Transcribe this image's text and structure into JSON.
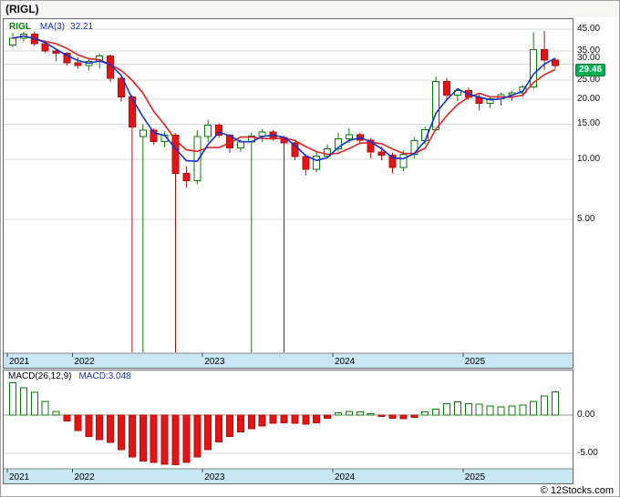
{
  "title": "(RIGL)",
  "legend": {
    "symbol": "RIGL",
    "ma_label": "MA(3)",
    "ma_value": "32.21"
  },
  "price_badge": "29.46",
  "macd_header": {
    "label": "MACD(26,12,9)",
    "value": "MACD:3.048"
  },
  "copyright": "© 12Stocks.com",
  "colors": {
    "up": "#0a7a0a",
    "up_fill": "#ffffff",
    "down": "#e41414",
    "down_stroke": "#b01010",
    "ma_fast": "#1133cc",
    "ma_slow": "#dd2222",
    "band": "#c9e6f5",
    "grid": "#d9d9d9",
    "zero_line": "#999999",
    "badge_bg": "#00b050"
  },
  "chart_data": {
    "type": "candlestick",
    "symbol": "RIGL",
    "interval": "monthly",
    "last_close": 29.46,
    "panels": [
      {
        "name": "price",
        "type": "candlestick",
        "y_axis": {
          "scale": "log",
          "ticks": [
            45,
            35,
            30,
            25,
            20,
            15,
            10,
            5
          ]
        },
        "x_ticks": [
          {
            "label": "2021",
            "index": 0
          },
          {
            "label": "2022",
            "index": 6
          },
          {
            "label": "2023",
            "index": 18
          },
          {
            "label": "2024",
            "index": 30
          },
          {
            "label": "2025",
            "index": 42
          }
        ],
        "candle_format": [
          "open",
          "high",
          "low",
          "close"
        ],
        "months": [
          "2021-07",
          "2021-08",
          "2021-09",
          "2021-10",
          "2021-11",
          "2021-12",
          "2022-01",
          "2022-02",
          "2022-03",
          "2022-04",
          "2022-05",
          "2022-06",
          "2022-07",
          "2022-08",
          "2022-09",
          "2022-10",
          "2022-11",
          "2022-12",
          "2023-01",
          "2023-02",
          "2023-03",
          "2023-04",
          "2023-05",
          "2023-06",
          "2023-07",
          "2023-08",
          "2023-09",
          "2023-10",
          "2023-11",
          "2023-12",
          "2024-01",
          "2024-02",
          "2024-03",
          "2024-04",
          "2024-05",
          "2024-06",
          "2024-07",
          "2024-08",
          "2024-09",
          "2024-10",
          "2024-11",
          "2024-12",
          "2025-01",
          "2025-02",
          "2025-03",
          "2025-04",
          "2025-05",
          "2025-06",
          "2025-07",
          "2025-08",
          "2025-09"
        ],
        "candles": [
          [
            37.5,
            43.0,
            36.5,
            40.5
          ],
          [
            40.5,
            43.5,
            39.0,
            42.5
          ],
          [
            42.5,
            43.8,
            37.0,
            38.0
          ],
          [
            38.0,
            39.5,
            34.0,
            35.0
          ],
          [
            35.0,
            35.5,
            31.0,
            34.0
          ],
          [
            34.0,
            34.5,
            29.5,
            30.5
          ],
          [
            30.5,
            32.5,
            28.5,
            29.5
          ],
          [
            29.5,
            32.0,
            28.0,
            31.0
          ],
          [
            31.0,
            34.0,
            28.5,
            33.0
          ],
          [
            33.0,
            33.5,
            24.5,
            25.5
          ],
          [
            25.5,
            26.5,
            19.5,
            20.5
          ],
          [
            20.5,
            21.0,
            1.0,
            14.5
          ],
          [
            13.0,
            15.0,
            1.0,
            14.0
          ],
          [
            14.0,
            14.3,
            11.8,
            12.3
          ],
          [
            12.3,
            13.8,
            11.5,
            13.2
          ],
          [
            13.2,
            13.5,
            1.0,
            8.5
          ],
          [
            8.5,
            9.2,
            7.2,
            7.8
          ],
          [
            7.8,
            14.0,
            7.5,
            13.0
          ],
          [
            13.0,
            15.8,
            12.2,
            14.8
          ],
          [
            14.8,
            15.2,
            12.8,
            13.2
          ],
          [
            13.2,
            13.4,
            10.8,
            11.4
          ],
          [
            11.4,
            12.6,
            10.9,
            12.2
          ],
          [
            12.2,
            13.6,
            1.0,
            13.1
          ],
          [
            13.1,
            14.2,
            12.2,
            13.7
          ],
          [
            13.7,
            14.0,
            12.4,
            12.9
          ],
          [
            12.9,
            13.1,
            1.0,
            12.1
          ],
          [
            12.1,
            12.4,
            9.9,
            10.3
          ],
          [
            10.3,
            10.6,
            8.3,
            8.9
          ],
          [
            8.9,
            10.9,
            8.6,
            10.4
          ],
          [
            10.4,
            11.9,
            10.1,
            11.3
          ],
          [
            11.3,
            13.6,
            10.9,
            12.7
          ],
          [
            12.7,
            14.3,
            12.1,
            13.3
          ],
          [
            13.3,
            13.6,
            11.9,
            12.5
          ],
          [
            12.5,
            12.8,
            10.1,
            10.9
          ],
          [
            10.9,
            11.6,
            9.9,
            10.5
          ],
          [
            10.5,
            10.8,
            8.5,
            9.1
          ],
          [
            9.1,
            11.1,
            8.7,
            10.6
          ],
          [
            10.6,
            12.9,
            10.1,
            12.4
          ],
          [
            12.4,
            14.6,
            11.9,
            14.1
          ],
          [
            14.1,
            26.0,
            13.9,
            24.6
          ],
          [
            24.6,
            25.6,
            19.9,
            21.0
          ],
          [
            21.0,
            22.6,
            19.6,
            22.1
          ],
          [
            22.1,
            22.9,
            19.9,
            20.4
          ],
          [
            20.4,
            21.1,
            17.6,
            19.1
          ],
          [
            19.1,
            20.6,
            18.1,
            20.1
          ],
          [
            20.1,
            21.6,
            18.6,
            21.1
          ],
          [
            21.1,
            22.1,
            19.6,
            21.6
          ],
          [
            21.6,
            23.6,
            20.6,
            23.1
          ],
          [
            23.1,
            43.5,
            22.6,
            35.5
          ],
          [
            35.5,
            44.0,
            28.0,
            31.5
          ],
          [
            31.5,
            32.0,
            28.5,
            29.46
          ]
        ],
        "overlays": [
          {
            "name": "MA(3)",
            "period": 3,
            "color": "#1133cc",
            "last_value": 32.21
          },
          {
            "name": "MA(5)",
            "period": 5,
            "color": "#dd2222"
          }
        ]
      },
      {
        "name": "macd",
        "type": "bar",
        "title": "MACD(26,12,9)",
        "last_value": 3.048,
        "y_ticks": [
          0,
          -5
        ],
        "values": [
          4.2,
          3.6,
          3.0,
          1.8,
          0.5,
          -0.8,
          -2.0,
          -2.8,
          -3.2,
          -3.6,
          -4.5,
          -5.5,
          -6.0,
          -6.2,
          -6.4,
          -6.5,
          -6.2,
          -5.5,
          -4.5,
          -3.5,
          -2.8,
          -2.2,
          -1.8,
          -1.4,
          -1.1,
          -1.0,
          -1.1,
          -1.2,
          -1.0,
          -0.4,
          0.3,
          0.5,
          0.4,
          0.2,
          -0.2,
          -0.4,
          -0.5,
          -0.3,
          0.4,
          0.8,
          1.5,
          1.7,
          1.5,
          1.4,
          1.2,
          1.1,
          1.2,
          1.3,
          1.8,
          2.5,
          3.048
        ]
      }
    ]
  }
}
